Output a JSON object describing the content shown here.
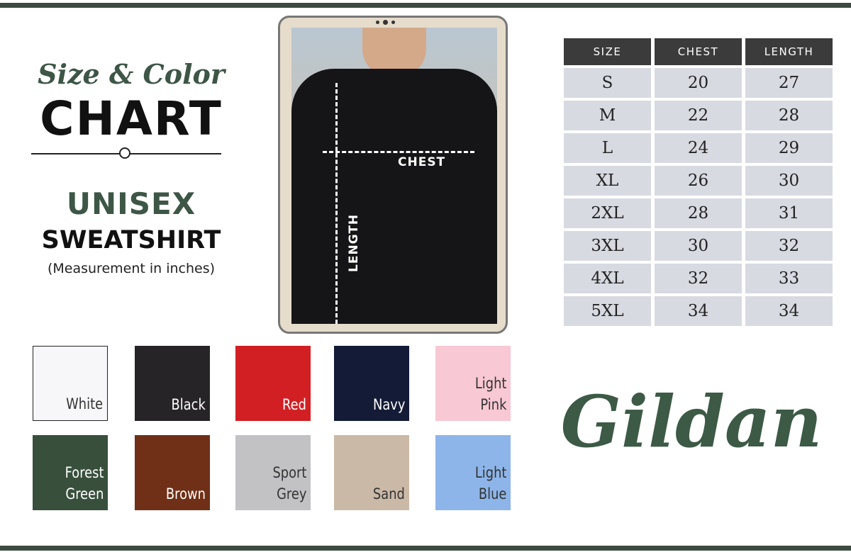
{
  "title": {
    "script": "Size & Color",
    "main": "CHART"
  },
  "product": {
    "line1": "UNISEX",
    "line2": "SWEATSHIRT",
    "note": "(Measurement in inches)"
  },
  "diagram": {
    "chest_label": "CHEST",
    "length_label": "LENGTH"
  },
  "size_table": {
    "headers": [
      "SIZE",
      "CHEST",
      "LENGTH"
    ],
    "rows": [
      [
        "S",
        "20",
        "27"
      ],
      [
        "M",
        "22",
        "28"
      ],
      [
        "L",
        "24",
        "29"
      ],
      [
        "XL",
        "26",
        "30"
      ],
      [
        "2XL",
        "28",
        "31"
      ],
      [
        "3XL",
        "30",
        "32"
      ],
      [
        "4XL",
        "32",
        "33"
      ],
      [
        "5XL",
        "34",
        "34"
      ]
    ]
  },
  "colors": [
    {
      "name": "White",
      "hex": "#f7f7f9",
      "text": "#333333"
    },
    {
      "name": "Black",
      "hex": "#262427",
      "text": "#ffffff"
    },
    {
      "name": "Red",
      "hex": "#d21f23",
      "text": "#ffffff"
    },
    {
      "name": "Navy",
      "hex": "#131b36",
      "text": "#ffffff"
    },
    {
      "name": "Light Pink",
      "hex": "#f8c8d4",
      "text": "#333333"
    },
    {
      "name": "Forest Green",
      "hex": "#384f3c",
      "text": "#ffffff"
    },
    {
      "name": "Brown",
      "hex": "#6f3017",
      "text": "#ffffff"
    },
    {
      "name": "Sport Grey",
      "hex": "#c2c2c4",
      "text": "#333333"
    },
    {
      "name": "Sand",
      "hex": "#cbb9a7",
      "text": "#333333"
    },
    {
      "name": "Light Blue",
      "hex": "#8db5e9",
      "text": "#333333"
    }
  ],
  "brand": "Gildan",
  "accent": "#3b4b40"
}
